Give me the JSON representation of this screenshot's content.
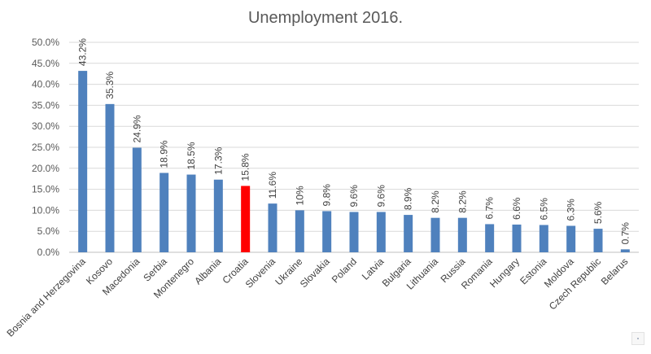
{
  "chart_data": {
    "type": "bar",
    "title": "Unemployment 2016.",
    "xlabel": "",
    "ylabel": "",
    "ylim": [
      0,
      50
    ],
    "yticks": [
      "0.0%",
      "5.0%",
      "10.0%",
      "15.0%",
      "20.0%",
      "25.0%",
      "30.0%",
      "35.0%",
      "40.0%",
      "45.0%",
      "50.0%"
    ],
    "grid": true,
    "categories": [
      "Bosnia and Herzegovina",
      "Kosovo",
      "Macedonia",
      "Serbia",
      "Montenegro",
      "Albania",
      "Croatia",
      "Slovenia",
      "Ukraine",
      "Slovakia",
      "Poland",
      "Latvia",
      "Bulgaria",
      "Lithuania",
      "Russia",
      "Romania",
      "Hungary",
      "Estonia",
      "Moldova",
      "Czech Republic",
      "Belarus"
    ],
    "values": [
      43.2,
      35.3,
      24.9,
      18.9,
      18.5,
      17.3,
      15.8,
      11.6,
      10,
      9.8,
      9.6,
      9.6,
      8.9,
      8.2,
      8.2,
      6.7,
      6.6,
      6.5,
      6.3,
      5.6,
      0.7
    ],
    "data_labels": [
      "43.2%",
      "35.3%",
      "24.9%",
      "18.9%",
      "18.5%",
      "17.3%",
      "15.8%",
      "11.6%",
      "10%",
      "9.8%",
      "9.6%",
      "9.6%",
      "8.9%",
      "8.2%",
      "8.2%",
      "6.7%",
      "6.6%",
      "6.5%",
      "6.3%",
      "5.6%",
      "0.7%"
    ],
    "colors": {
      "bar": "#4f81bd",
      "highlight": "#ff0000"
    },
    "highlight_category": "Croatia"
  }
}
